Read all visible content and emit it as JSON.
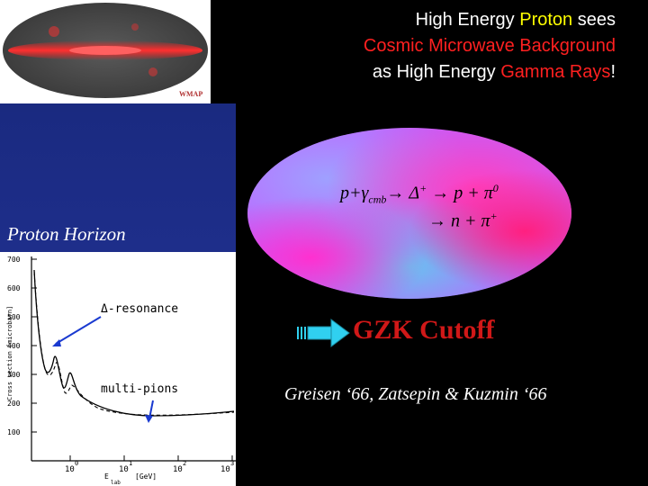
{
  "title": {
    "line1_pre": "High Energy ",
    "line1_hl": "Proton",
    "line1_post": " sees",
    "line2": "Cosmic Microwave Background",
    "line3_pre": "as High Energy ",
    "line3_hl": "Gamma Rays",
    "line3_post": "!"
  },
  "wmap": {
    "label": "WMAP"
  },
  "reaction": {
    "line1": "p+γcmb→ Δ+ → p + π0",
    "lhs_p": "p+γ",
    "lhs_cmb": "cmb",
    "arrow1": "→ Δ",
    "delta_sup": "+",
    "arrow2": " → p + π",
    "pi0_sup": "0",
    "line2_main": "→ n + π",
    "line2_sup": "+"
  },
  "proton_horizon": "Proton Horizon",
  "plot": {
    "delta_label": "Δ-resonance",
    "multipion_label": "multi-pions",
    "y_ticks": [
      "700",
      "600",
      "500",
      "400",
      "300",
      "200",
      "100"
    ],
    "x_ticks": [
      "10",
      "0",
      "10",
      "1",
      "10",
      "2",
      "10",
      "3"
    ],
    "ylabel": "Cross section [microbarn]",
    "xlabel": "E",
    "xlabel_sub": "lab",
    "xunit": "[GeV]"
  },
  "gzk": "GZK Cutoff",
  "citation": "Greisen ‘66, Zatsepin & Kuzmin ‘66",
  "colors": {
    "yellow": "#ffff00",
    "red": "#ff2020",
    "gzk": "#d01818"
  }
}
